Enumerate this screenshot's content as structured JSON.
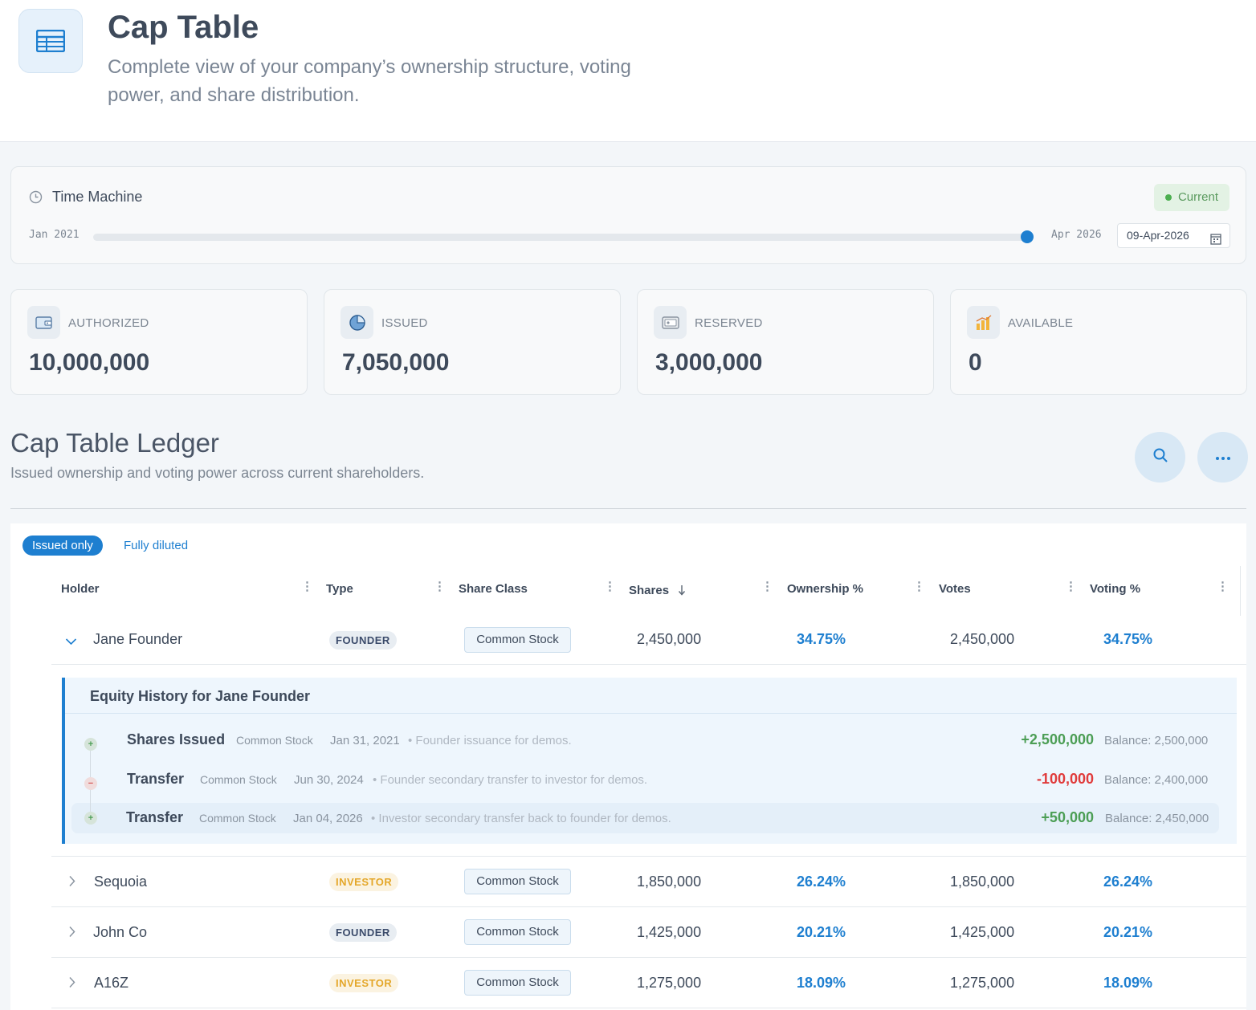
{
  "header": {
    "title": "Cap Table",
    "subtitle": "Complete view of your company’s ownership structure, voting power, and share distribution."
  },
  "time_machine": {
    "title": "Time Machine",
    "status": "Current",
    "start_label": "Jan 2021",
    "end_label": "Apr 2026",
    "date_value": "09-Apr-2026",
    "slider_position": 1.0
  },
  "stats": [
    {
      "label": "AUTHORIZED",
      "value": "10,000,000",
      "icon": "wallet-icon"
    },
    {
      "label": "ISSUED",
      "value": "7,050,000",
      "icon": "pie-chart-icon"
    },
    {
      "label": "RESERVED",
      "value": "3,000,000",
      "icon": "safe-icon"
    },
    {
      "label": "AVAILABLE",
      "value": "0",
      "icon": "bar-chart-icon"
    }
  ],
  "ledger": {
    "title": "Cap Table Ledger",
    "subtitle": "Issued ownership and voting power across current shareholders.",
    "toggle_active": "Issued only",
    "toggle_inactive": "Fully diluted"
  },
  "columns": [
    "Holder",
    "Type",
    "Share Class",
    "Shares",
    "Ownership %",
    "Votes",
    "Voting %"
  ],
  "rows": [
    {
      "holder": "Jane Founder",
      "type": "FOUNDER",
      "class": "Common Stock",
      "shares": "2,450,000",
      "ownership": "34.75%",
      "votes": "2,450,000",
      "voting": "34.75%"
    },
    {
      "holder": "Sequoia",
      "type": "INVESTOR",
      "class": "Common Stock",
      "shares": "1,850,000",
      "ownership": "26.24%",
      "votes": "1,850,000",
      "voting": "26.24%"
    },
    {
      "holder": "John Co",
      "type": "FOUNDER",
      "class": "Common Stock",
      "shares": "1,425,000",
      "ownership": "20.21%",
      "votes": "1,425,000",
      "voting": "20.21%"
    },
    {
      "holder": "A16Z",
      "type": "INVESTOR",
      "class": "Common Stock",
      "shares": "1,275,000",
      "ownership": "18.09%",
      "votes": "1,275,000",
      "voting": "18.09%"
    }
  ],
  "history": {
    "title": "Equity History for Jane Founder",
    "events": [
      {
        "type": "Shares Issued",
        "class": "Common Stock",
        "date": "Jan 31, 2021",
        "note": "• Founder issuance for demos.",
        "delta": "+2,500,000",
        "balance": "Balance: 2,500,000"
      },
      {
        "type": "Transfer",
        "class": "Common Stock",
        "date": "Jun 30, 2024",
        "note": "• Founder secondary transfer to investor for demos.",
        "delta": "-100,000",
        "balance": "Balance: 2,400,000"
      },
      {
        "type": "Transfer",
        "class": "Common Stock",
        "date": "Jan 04, 2026",
        "note": "• Investor secondary transfer back to founder for demos.",
        "delta": "+50,000",
        "balance": "Balance: 2,450,000"
      }
    ]
  },
  "colors": {
    "accent": "#1e7fd0",
    "positive": "#4c9e55",
    "negative": "#e03b3b",
    "investor": "#e4a72a"
  }
}
